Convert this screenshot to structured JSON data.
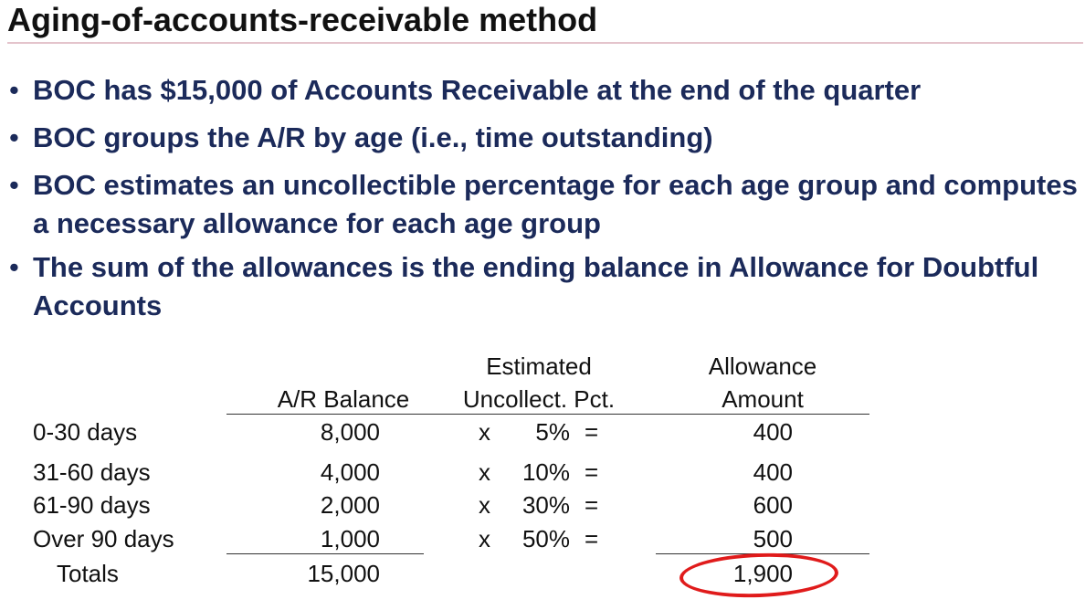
{
  "slide": {
    "title": "Aging-of-accounts-receivable method",
    "bullets": [
      "BOC has $15,000 of Accounts Receivable at the end of the quarter",
      "BOC groups the A/R by age (i.e., time outstanding)",
      "BOC estimates an uncollectible percentage for each age group and computes a necessary allowance for each age group",
      "The sum of the allowances is the ending balance in Allowance for Doubtful Accounts"
    ]
  },
  "table": {
    "headers": {
      "balance": "A/R Balance",
      "pct_line1": "Estimated",
      "pct_line2": "Uncollect. Pct.",
      "allow_line1": "Allowance",
      "allow_line2": "Amount"
    },
    "rows": [
      {
        "label": "0-30 days",
        "balance": "8,000",
        "x": "x",
        "pct": "5%",
        "eq": "=",
        "allowance": "400"
      },
      {
        "label": "31-60 days",
        "balance": "4,000",
        "x": "x",
        "pct": "10%",
        "eq": "=",
        "allowance": "400"
      },
      {
        "label": "61-90 days",
        "balance": "2,000",
        "x": "x",
        "pct": "30%",
        "eq": "=",
        "allowance": "600"
      },
      {
        "label": "Over 90 days",
        "balance": "1,000",
        "x": "x",
        "pct": "50%",
        "eq": "=",
        "allowance": "500"
      }
    ],
    "totals": {
      "label": "Totals",
      "balance": "15,000",
      "allowance": "1,900"
    }
  },
  "colors": {
    "bullet_text": "#1b2a5a",
    "highlight_oval": "#e01b1b",
    "title_rule": "#e4c4cc"
  }
}
